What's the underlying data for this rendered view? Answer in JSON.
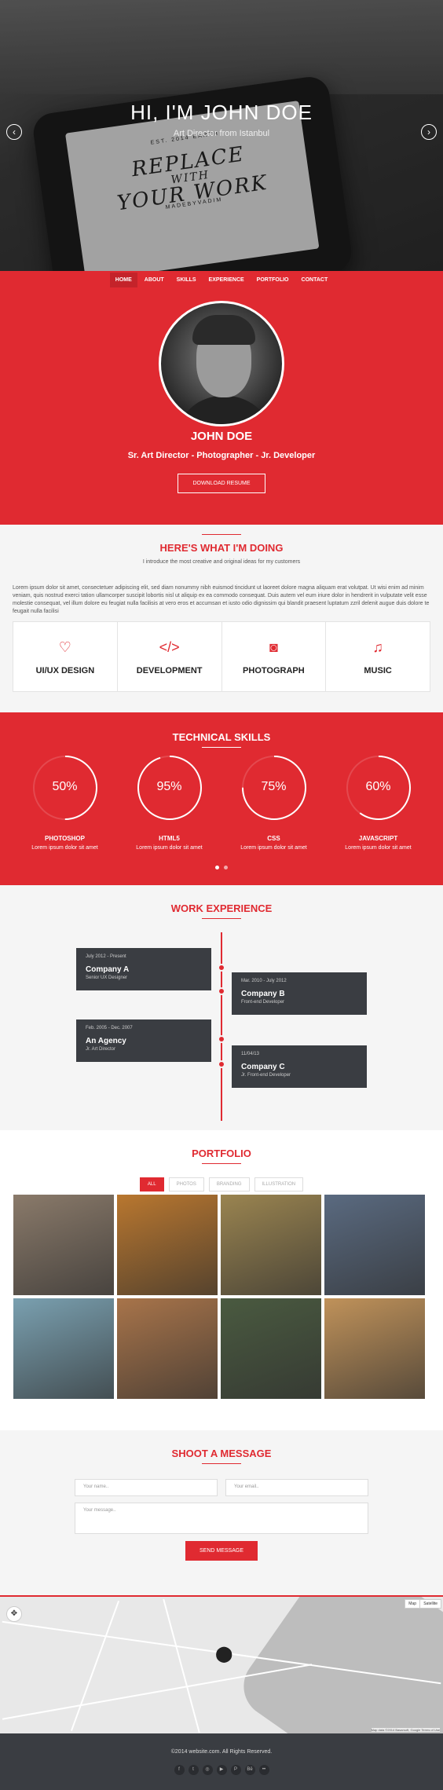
{
  "hero": {
    "title": "HI, I'M JOHN DOE",
    "subtitle": "Art Director from Istanbul",
    "prev_icon": "chevron-left-icon",
    "next_icon": "chevron-right-icon",
    "prev_glyph": "‹",
    "next_glyph": "›",
    "tablet_top": "EST. 2014 EARTH",
    "tablet_text1": "REPLACE",
    "tablet_text2": "WITH",
    "tablet_text3": "YOUR WORK",
    "tablet_bottom": "MADEBYVADIM"
  },
  "nav": {
    "items": [
      {
        "label": "HOME",
        "active": true
      },
      {
        "label": "ABOUT",
        "active": false
      },
      {
        "label": "SKILLS",
        "active": false
      },
      {
        "label": "EXPERIENCE",
        "active": false
      },
      {
        "label": "PORTFOLIO",
        "active": false
      },
      {
        "label": "CONTACT",
        "active": false
      }
    ]
  },
  "profile": {
    "name": "JOHN DOE",
    "role": "Sr. Art Director - Photographer - Jr. Developer",
    "button": "DOWNLOAD RESUME"
  },
  "doing": {
    "title": "HERE'S WHAT I'M DOING",
    "tagline": "I introduce the most creative and original ideas for my customers",
    "paragraph": "Lorem ipsum dolor sit amet, consectetuer adipiscing elit, sed diam nonummy nibh euismod tincidunt ut laoreet dolore magna aliquam erat volutpat. Ut wisi enim ad minim veniam, quis nostrud exerci tation ullamcorper suscipit lobortis nisl ut aliquip ex ea commodo consequat. Duis autem vel eum iriure dolor in hendrerit in vulputate velit esse molestie consequat, vel illum dolore eu feugiat nulla facilisis at vero eros et accumsan et iusto odio dignissim qui blandit praesent luptatum zzril delenit augue duis dolore te feugait nulla facilisi",
    "services": [
      {
        "label": "UI/UX DESIGN",
        "icon": "heart-icon",
        "glyph": "♡"
      },
      {
        "label": "DEVELOPMENT",
        "icon": "code-icon",
        "glyph": "</>"
      },
      {
        "label": "PHOTOGRAPH",
        "icon": "camera-icon",
        "glyph": "◙"
      },
      {
        "label": "MUSIC",
        "icon": "music-note-icon",
        "glyph": "♫"
      }
    ]
  },
  "skills": {
    "title": "TECHNICAL SKILLS",
    "items": [
      {
        "pct": 50,
        "pct_label": "50%",
        "name": "PHOTOSHOP",
        "desc": "Lorem ipsum dolor sit amet"
      },
      {
        "pct": 95,
        "pct_label": "95%",
        "name": "HTML5",
        "desc": "Lorem ipsum dolor sit amet"
      },
      {
        "pct": 75,
        "pct_label": "75%",
        "name": "CSS",
        "desc": "Lorem ipsum dolor sit amet"
      },
      {
        "pct": 60,
        "pct_label": "60%",
        "name": "JAVASCRIPT",
        "desc": "Lorem ipsum dolor sit amet"
      }
    ]
  },
  "experience": {
    "title": "WORK EXPERIENCE",
    "items": [
      {
        "date": "July 2012 - Present",
        "company": "Company A",
        "position": "Senior UX Designer"
      },
      {
        "date": "Mar. 2010 - July 2012",
        "company": "Company B",
        "position": "Front-end Developer"
      },
      {
        "date": "Feb. 2005 - Dec. 2007",
        "company": "An Agency",
        "position": "Jr. Art Director"
      },
      {
        "date": "11/04/13",
        "company": "Company C",
        "position": "Jr. Front-end Developer"
      }
    ]
  },
  "portfolio": {
    "title": "PORTFOLIO",
    "filters": [
      {
        "label": "ALL",
        "active": true
      },
      {
        "label": "PHOTOS",
        "active": false
      },
      {
        "label": "BRANDING",
        "active": false
      },
      {
        "label": "ILLUSTRATION",
        "active": false
      }
    ],
    "photo_colors": [
      "#8a7a6a",
      "#b9772f",
      "#9a8450",
      "#5a6a80",
      "#7aa0b0",
      "#a8744a",
      "#4a5a40",
      "#c0925a"
    ]
  },
  "contact": {
    "title": "SHOOT A MESSAGE",
    "name_placeholder": "Your name..",
    "email_placeholder": "Your email..",
    "message_placeholder": "Your message..",
    "button": "SEND MESSAGE"
  },
  "map": {
    "map_btn": "Map",
    "satellite_btn": "Satellite",
    "attribution": "Map data ©2014 Basarsoft, Google   Terms of Use"
  },
  "footer": {
    "copyright": "©2014 website.com. All Rights Reserved.",
    "socials": [
      {
        "icon": "facebook-icon",
        "glyph": "f"
      },
      {
        "icon": "twitter-icon",
        "glyph": "t"
      },
      {
        "icon": "dribbble-icon",
        "glyph": "◎"
      },
      {
        "icon": "youtube-icon",
        "glyph": "▶"
      },
      {
        "icon": "pinterest-icon",
        "glyph": "P"
      },
      {
        "icon": "behance-icon",
        "glyph": "Bē"
      },
      {
        "icon": "flickr-icon",
        "glyph": "••"
      }
    ]
  },
  "colors": {
    "accent": "#e02a31",
    "dark": "#3a3d42",
    "light": "#f5f5f5"
  }
}
